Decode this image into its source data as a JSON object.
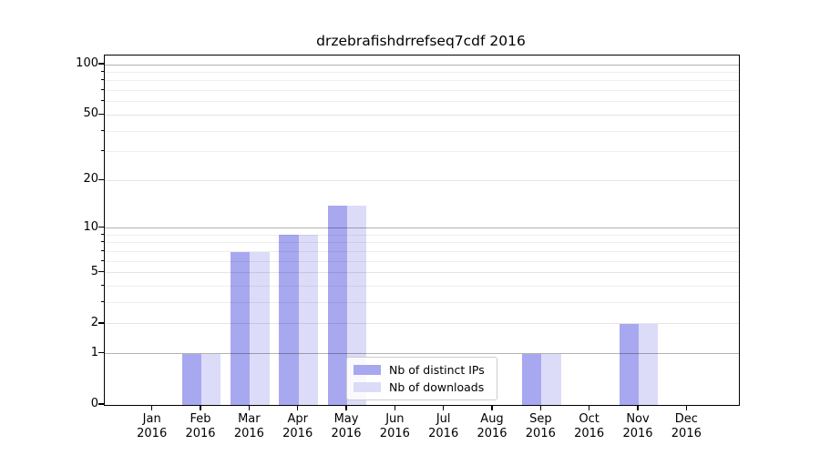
{
  "chart_data": {
    "type": "bar",
    "title": "drzebrafishdrrefseq7cdf 2016",
    "categories": [
      "Jan 2016",
      "Feb 2016",
      "Mar 2016",
      "Apr 2016",
      "May 2016",
      "Jun 2016",
      "Jul 2016",
      "Aug 2016",
      "Sep 2016",
      "Oct 2016",
      "Nov 2016",
      "Dec 2016"
    ],
    "series": [
      {
        "name": "Nb of distinct IPs",
        "color": "#a8a8f0",
        "values": [
          0,
          1,
          7,
          9,
          14,
          0,
          0,
          0,
          1,
          0,
          2,
          0
        ]
      },
      {
        "name": "Nb of downloads",
        "color": "#dcdcf8",
        "values": [
          0,
          1,
          7,
          9,
          14,
          0,
          0,
          0,
          1,
          0,
          2,
          0
        ]
      }
    ],
    "xlabel": "",
    "ylabel": "",
    "yscale": "log1p",
    "ylim": [
      0,
      113
    ],
    "yticks": [
      0,
      1,
      2,
      5,
      10,
      20,
      50,
      100
    ],
    "yticks_emphasized": [
      1,
      10,
      100
    ],
    "yticks_minor": [
      3,
      4,
      6,
      7,
      8,
      9,
      30,
      40,
      60,
      70,
      80,
      90
    ],
    "grid": "on",
    "legend_position": "lower center",
    "bar_layout": "paired side-by-side, centered on month tick"
  }
}
